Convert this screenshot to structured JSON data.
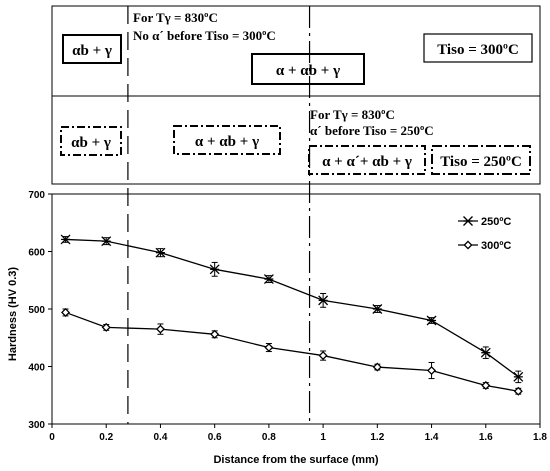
{
  "schematic": {
    "top": {
      "left_box": "αb + γ",
      "note_line1": "For Tγ = 830ºC",
      "note_line2": "No α´ before Tiso = 300ºC",
      "mid_box": "α + αb + γ",
      "temp_box": "Tiso = 300ºC"
    },
    "bottom": {
      "left_box": "αb + γ",
      "mid_box": "α + αb + γ",
      "note_line1": "For Tγ = 830ºC",
      "note_line2": "α´ before Tiso = 250ºC",
      "right_box": "α + α´+ αb + γ",
      "temp_box": "Tiso = 250ºC"
    }
  },
  "chart_data": {
    "type": "line",
    "xlabel": "Distance from the surface (mm)",
    "ylabel": "Hardness (HV 0.3)",
    "xlim": [
      0,
      1.8
    ],
    "ylim": [
      300,
      700
    ],
    "x_ticks": [
      "0",
      "0.2",
      "0.4",
      "0.6",
      "0.8",
      "1",
      "1.2",
      "1.4",
      "1.6",
      "1.8"
    ],
    "y_ticks": [
      "300",
      "400",
      "500",
      "600",
      "700"
    ],
    "grid": false,
    "legend_position": "top-right",
    "series": [
      {
        "name": "250ºC",
        "marker": "asterisk",
        "x": [
          0.05,
          0.2,
          0.4,
          0.6,
          0.8,
          1.0,
          1.2,
          1.4,
          1.6,
          1.72
        ],
        "values": [
          621,
          618,
          598,
          569,
          552,
          515,
          500,
          480,
          424,
          382
        ],
        "errors": [
          5,
          6,
          7,
          12,
          6,
          12,
          6,
          5,
          10,
          10
        ]
      },
      {
        "name": "300ºC",
        "marker": "diamond",
        "x": [
          0.05,
          0.2,
          0.4,
          0.6,
          0.8,
          1.0,
          1.2,
          1.4,
          1.6,
          1.72
        ],
        "values": [
          494,
          468,
          465,
          456,
          433,
          419,
          399,
          393,
          367,
          357
        ],
        "errors": [
          6,
          5,
          9,
          6,
          7,
          8,
          5,
          14,
          5,
          5
        ]
      }
    ],
    "boundaries": [
      {
        "x": 0.28,
        "style": "long-dash"
      },
      {
        "x": 0.95,
        "style": "dash-dot"
      }
    ]
  }
}
